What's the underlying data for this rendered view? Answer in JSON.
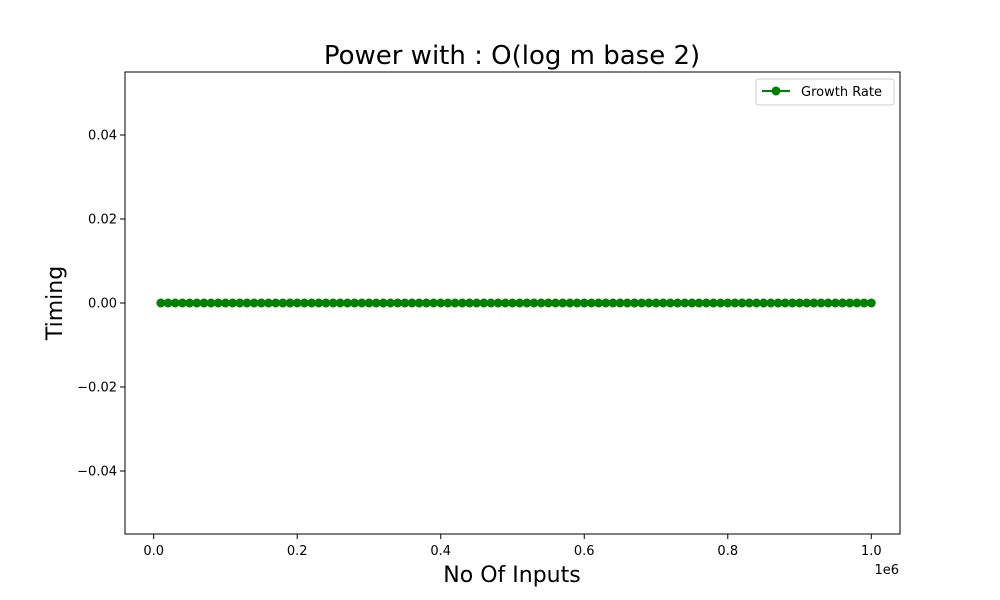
{
  "chart_data": {
    "type": "line",
    "title": "Power with : O(log m base 2)",
    "xlabel": "No Of Inputs",
    "ylabel": "Timing",
    "x_offset_text": "1e6",
    "xlim": [
      -0.04,
      1.04
    ],
    "ylim": [
      -0.055,
      0.055
    ],
    "x_ticks": [
      0.0,
      0.2,
      0.4,
      0.6,
      0.8,
      1.0
    ],
    "x_tick_labels": [
      "0.0",
      "0.2",
      "0.4",
      "0.6",
      "0.8",
      "1.0"
    ],
    "y_ticks": [
      -0.04,
      -0.02,
      0.0,
      0.02,
      0.04
    ],
    "y_tick_labels": [
      "−0.04",
      "−0.02",
      "0.00",
      "0.02",
      "0.04"
    ],
    "legend_position": "top-right",
    "grid": false,
    "series": [
      {
        "name": "Growth Rate",
        "color": "#008000",
        "marker": "circle",
        "x": [
          0.01,
          0.02,
          0.03,
          0.04,
          0.05,
          0.06,
          0.07,
          0.08,
          0.09,
          0.1,
          0.11,
          0.12,
          0.13,
          0.14,
          0.15,
          0.16,
          0.17,
          0.18,
          0.19,
          0.2,
          0.21,
          0.22,
          0.23,
          0.24,
          0.25,
          0.26,
          0.27,
          0.28,
          0.29,
          0.3,
          0.31,
          0.32,
          0.33,
          0.34,
          0.35,
          0.36,
          0.37,
          0.38,
          0.39,
          0.4,
          0.41,
          0.42,
          0.43,
          0.44,
          0.45,
          0.46,
          0.47,
          0.48,
          0.49,
          0.5,
          0.51,
          0.52,
          0.53,
          0.54,
          0.55,
          0.56,
          0.57,
          0.58,
          0.59,
          0.6,
          0.61,
          0.62,
          0.63,
          0.64,
          0.65,
          0.66,
          0.67,
          0.68,
          0.69,
          0.7,
          0.71,
          0.72,
          0.73,
          0.74,
          0.75,
          0.76,
          0.77,
          0.78,
          0.79,
          0.8,
          0.81,
          0.82,
          0.83,
          0.84,
          0.85,
          0.86,
          0.87,
          0.88,
          0.89,
          0.9,
          0.91,
          0.92,
          0.93,
          0.94,
          0.95,
          0.96,
          0.97,
          0.98,
          0.99,
          1.0
        ],
        "y": [
          0,
          0,
          0,
          0,
          0,
          0,
          0,
          0,
          0,
          0,
          0,
          0,
          0,
          0,
          0,
          0,
          0,
          0,
          0,
          0,
          0,
          0,
          0,
          0,
          0,
          0,
          0,
          0,
          0,
          0,
          0,
          0,
          0,
          0,
          0,
          0,
          0,
          0,
          0,
          0,
          0,
          0,
          0,
          0,
          0,
          0,
          0,
          0,
          0,
          0,
          0,
          0,
          0,
          0,
          0,
          0,
          0,
          0,
          0,
          0,
          0,
          0,
          0,
          0,
          0,
          0,
          0,
          0,
          0,
          0,
          0,
          0,
          0,
          0,
          0,
          0,
          0,
          0,
          0,
          0,
          0,
          0,
          0,
          0,
          0,
          0,
          0,
          0,
          0,
          0,
          0,
          0,
          0,
          0,
          0,
          0,
          0,
          0,
          0,
          0
        ]
      }
    ]
  }
}
